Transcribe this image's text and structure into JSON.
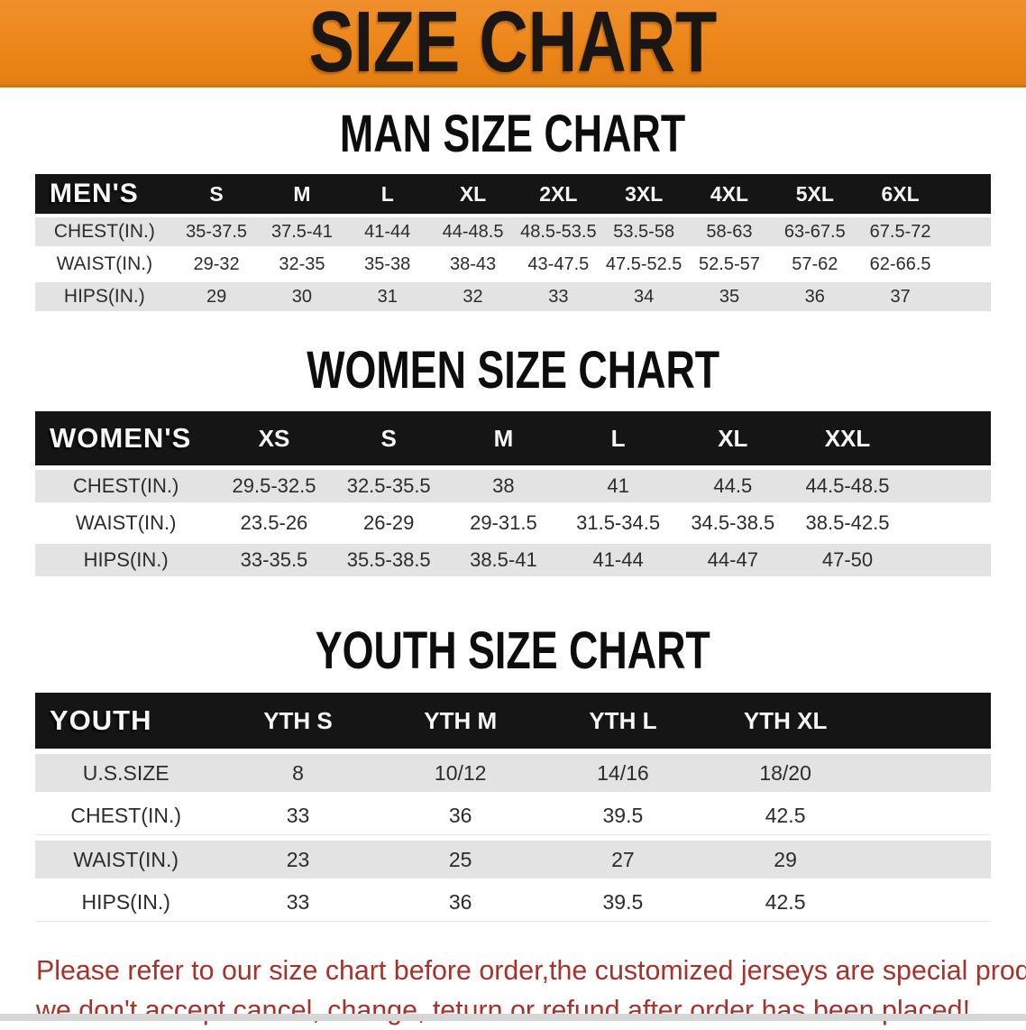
{
  "banner": {
    "title": "SIZE CHART",
    "bg_color": "#ec8619",
    "text_color": "#191613"
  },
  "colors": {
    "table_header_bg": "#151515",
    "table_header_text": "#f6f6f6",
    "row_shade_bg": "#e3e3e3",
    "note_color": "#a5322b"
  },
  "sections": [
    {
      "heading": "MAN SIZE CHART",
      "table": {
        "corner_label": "MEN'S",
        "columns": [
          "S",
          "M",
          "L",
          "XL",
          "2XL",
          "3XL",
          "4XL",
          "5XL",
          "6XL"
        ],
        "rows": [
          {
            "label": "CHEST(IN.)",
            "values": [
              "35-37.5",
              "37.5-41",
              "41-44",
              "44-48.5",
              "48.5-53.5",
              "53.5-58",
              "58-63",
              "63-67.5",
              "67.5-72"
            ]
          },
          {
            "label": "WAIST(IN.)",
            "values": [
              "29-32",
              "32-35",
              "35-38",
              "38-43",
              "43-47.5",
              "47.5-52.5",
              "52.5-57",
              "57-62",
              "62-66.5"
            ]
          },
          {
            "label": "HIPS(IN.)",
            "values": [
              "29",
              "30",
              "31",
              "32",
              "33",
              "34",
              "35",
              "36",
              "37"
            ]
          }
        ]
      }
    },
    {
      "heading": "WOMEN SIZE CHART",
      "table": {
        "corner_label": "WOMEN'S",
        "columns": [
          "XS",
          "S",
          "M",
          "L",
          "XL",
          "XXL"
        ],
        "rows": [
          {
            "label": "CHEST(IN.)",
            "values": [
              "29.5-32.5",
              "32.5-35.5",
              "38",
              "41",
              "44.5",
              "44.5-48.5"
            ]
          },
          {
            "label": "WAIST(IN.)",
            "values": [
              "23.5-26",
              "26-29",
              "29-31.5",
              "31.5-34.5",
              "34.5-38.5",
              "38.5-42.5"
            ]
          },
          {
            "label": "HIPS(IN.)",
            "values": [
              "33-35.5",
              "35.5-38.5",
              "38.5-41",
              "41-44",
              "44-47",
              "47-50"
            ]
          }
        ]
      }
    },
    {
      "heading": "YOUTH SIZE CHART",
      "table": {
        "corner_label": "YOUTH",
        "columns": [
          "YTH S",
          "YTH M",
          "YTH L",
          "YTH XL"
        ],
        "rows": [
          {
            "label": "U.S.SIZE",
            "values": [
              "8",
              "10/12",
              "14/16",
              "18/20"
            ]
          },
          {
            "label": "CHEST(IN.)",
            "values": [
              "33",
              "36",
              "39.5",
              "42.5"
            ]
          },
          {
            "label": "WAIST(IN.)",
            "values": [
              "23",
              "25",
              "27",
              "29"
            ]
          },
          {
            "label": "HIPS(IN.)",
            "values": [
              "33",
              "36",
              "39.5",
              "42.5"
            ]
          }
        ]
      }
    }
  ],
  "footer": {
    "lines": [
      "Please refer to our size chart before order,the customized jerseys are special products,",
      "we don't accept cancel, change, teturn or refund after order has been placed!"
    ]
  }
}
